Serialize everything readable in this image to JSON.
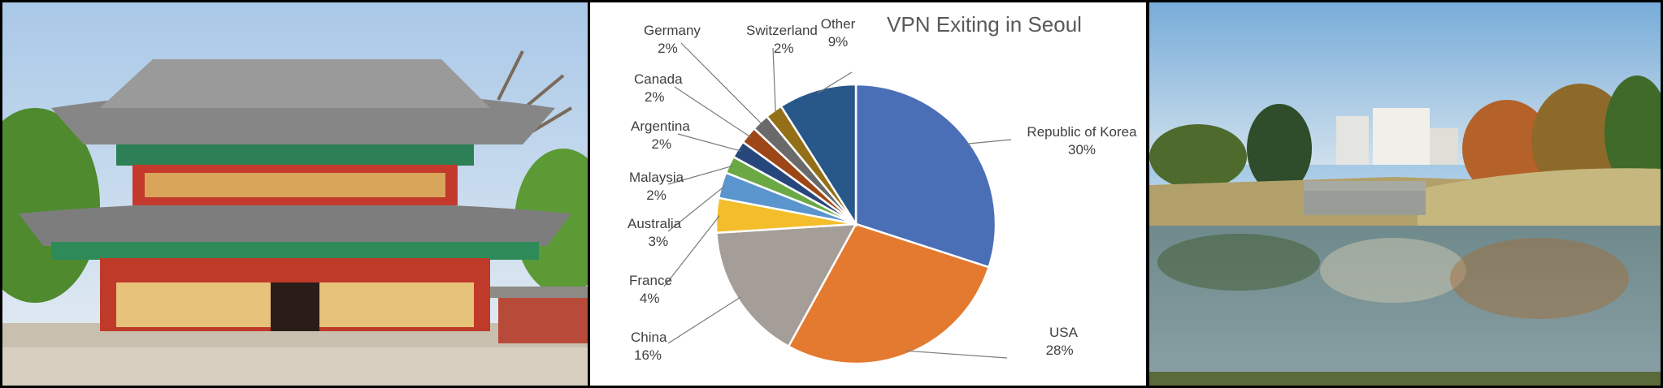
{
  "chart_data": {
    "type": "pie",
    "title": "VPN Exiting in Seoul",
    "slices": [
      {
        "label": "Republic of  Korea",
        "value": 30,
        "pct_text": "30%",
        "color": "#4a6fb7"
      },
      {
        "label": "USA",
        "value": 28,
        "pct_text": "28%",
        "color": "#e37a2f"
      },
      {
        "label": "China",
        "value": 16,
        "pct_text": "16%",
        "color": "#a59d97"
      },
      {
        "label": "France",
        "value": 4,
        "pct_text": "4%",
        "color": "#f3bd2c"
      },
      {
        "label": "Australia",
        "value": 3,
        "pct_text": "3%",
        "color": "#5a96cd"
      },
      {
        "label": "Malaysia",
        "value": 2,
        "pct_text": "2%",
        "color": "#6aa944"
      },
      {
        "label": "Argentina",
        "value": 2,
        "pct_text": "2%",
        "color": "#27477c"
      },
      {
        "label": "Canada",
        "value": 2,
        "pct_text": "2%",
        "color": "#9d4718"
      },
      {
        "label": "Germany",
        "value": 2,
        "pct_text": "2%",
        "color": "#6a6a6a"
      },
      {
        "label": "Switzerland",
        "value": 2,
        "pct_text": "2%",
        "color": "#937018"
      },
      {
        "label": "Other",
        "value": 9,
        "pct_text": "9%",
        "color": "#28588a"
      }
    ],
    "legend": "none (leader-line data labels)"
  }
}
